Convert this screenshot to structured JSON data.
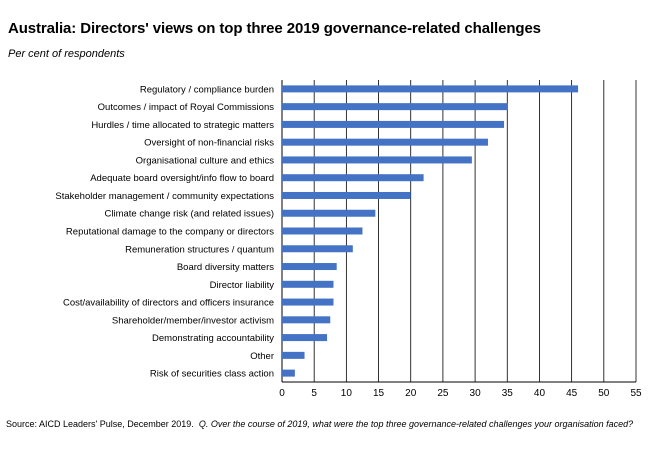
{
  "chart_data": {
    "type": "bar",
    "orientation": "horizontal",
    "title": "Australia: Directors' views on top three 2019 governance-related challenges",
    "subtitle": "Per cent of respondents",
    "xlabel": "",
    "ylabel": "",
    "xlim": [
      0,
      55
    ],
    "xticks": [
      "0",
      "5",
      "10",
      "15",
      "20",
      "25",
      "30",
      "35",
      "40",
      "45",
      "50",
      "55"
    ],
    "grid": "vertical",
    "bar_color": "#4472C4",
    "categories": [
      "Regulatory / compliance burden",
      "Outcomes / impact of Royal Commissions",
      "Hurdles / time allocated to strategic matters",
      "Oversight of non-financial risks",
      "Organisational culture and ethics",
      "Adequate board oversight/info flow to board",
      "Stakeholder management / community expectations",
      "Climate change risk (and related issues)",
      "Reputational damage to the company or directors",
      "Remuneration structures / quantum",
      "Board diversity matters",
      "Director liability",
      "Cost/availability of directors and officers insurance",
      "Shareholder/member/investor activism",
      "Demonstrating accountability",
      "Other",
      "Risk of securities class action"
    ],
    "values": [
      46,
      35,
      34.5,
      32,
      29.5,
      22,
      20,
      14.5,
      12.5,
      11,
      8.5,
      8,
      8,
      7.5,
      7,
      3.5,
      2
    ]
  },
  "source": {
    "prefix": "Source: AICD Leaders' Pulse, December 2019.",
    "question": "Q. Over the course of 2019, what were the top three governance-related challenges your organisation faced?"
  }
}
